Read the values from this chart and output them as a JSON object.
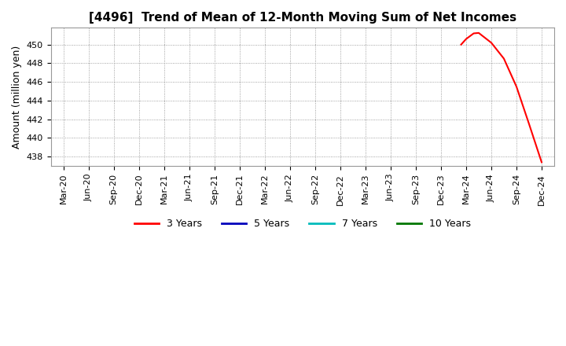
{
  "title": "[4496]  Trend of Mean of 12-Month Moving Sum of Net Incomes",
  "ylabel": "Amount (million yen)",
  "background_color": "#ffffff",
  "plot_bg_color": "#ffffff",
  "grid_color": "#888888",
  "ylim": [
    437,
    451.8
  ],
  "yticks": [
    438,
    440,
    442,
    444,
    446,
    448,
    450
  ],
  "xtick_labels": [
    "Mar-20",
    "Jun-20",
    "Sep-20",
    "Dec-20",
    "Mar-21",
    "Jun-21",
    "Sep-21",
    "Dec-21",
    "Mar-22",
    "Jun-22",
    "Sep-22",
    "Dec-22",
    "Mar-23",
    "Jun-23",
    "Sep-23",
    "Dec-23",
    "Mar-24",
    "Jun-24",
    "Sep-24",
    "Dec-24"
  ],
  "line_3yr_x": [
    15.8,
    16.0,
    16.3,
    16.5,
    17.0,
    17.5,
    18.0,
    18.5,
    19.0
  ],
  "line_3yr_y": [
    450.0,
    450.6,
    451.2,
    451.25,
    450.2,
    448.5,
    445.5,
    441.5,
    437.4
  ],
  "line_color_3yr": "#ff0000",
  "line_color_5yr": "#0000bb",
  "line_color_7yr": "#00bbbb",
  "line_color_10yr": "#007700",
  "legend_labels": [
    "3 Years",
    "5 Years",
    "7 Years",
    "10 Years"
  ],
  "title_fontsize": 11,
  "axis_label_fontsize": 9,
  "tick_fontsize": 8,
  "legend_fontsize": 9
}
